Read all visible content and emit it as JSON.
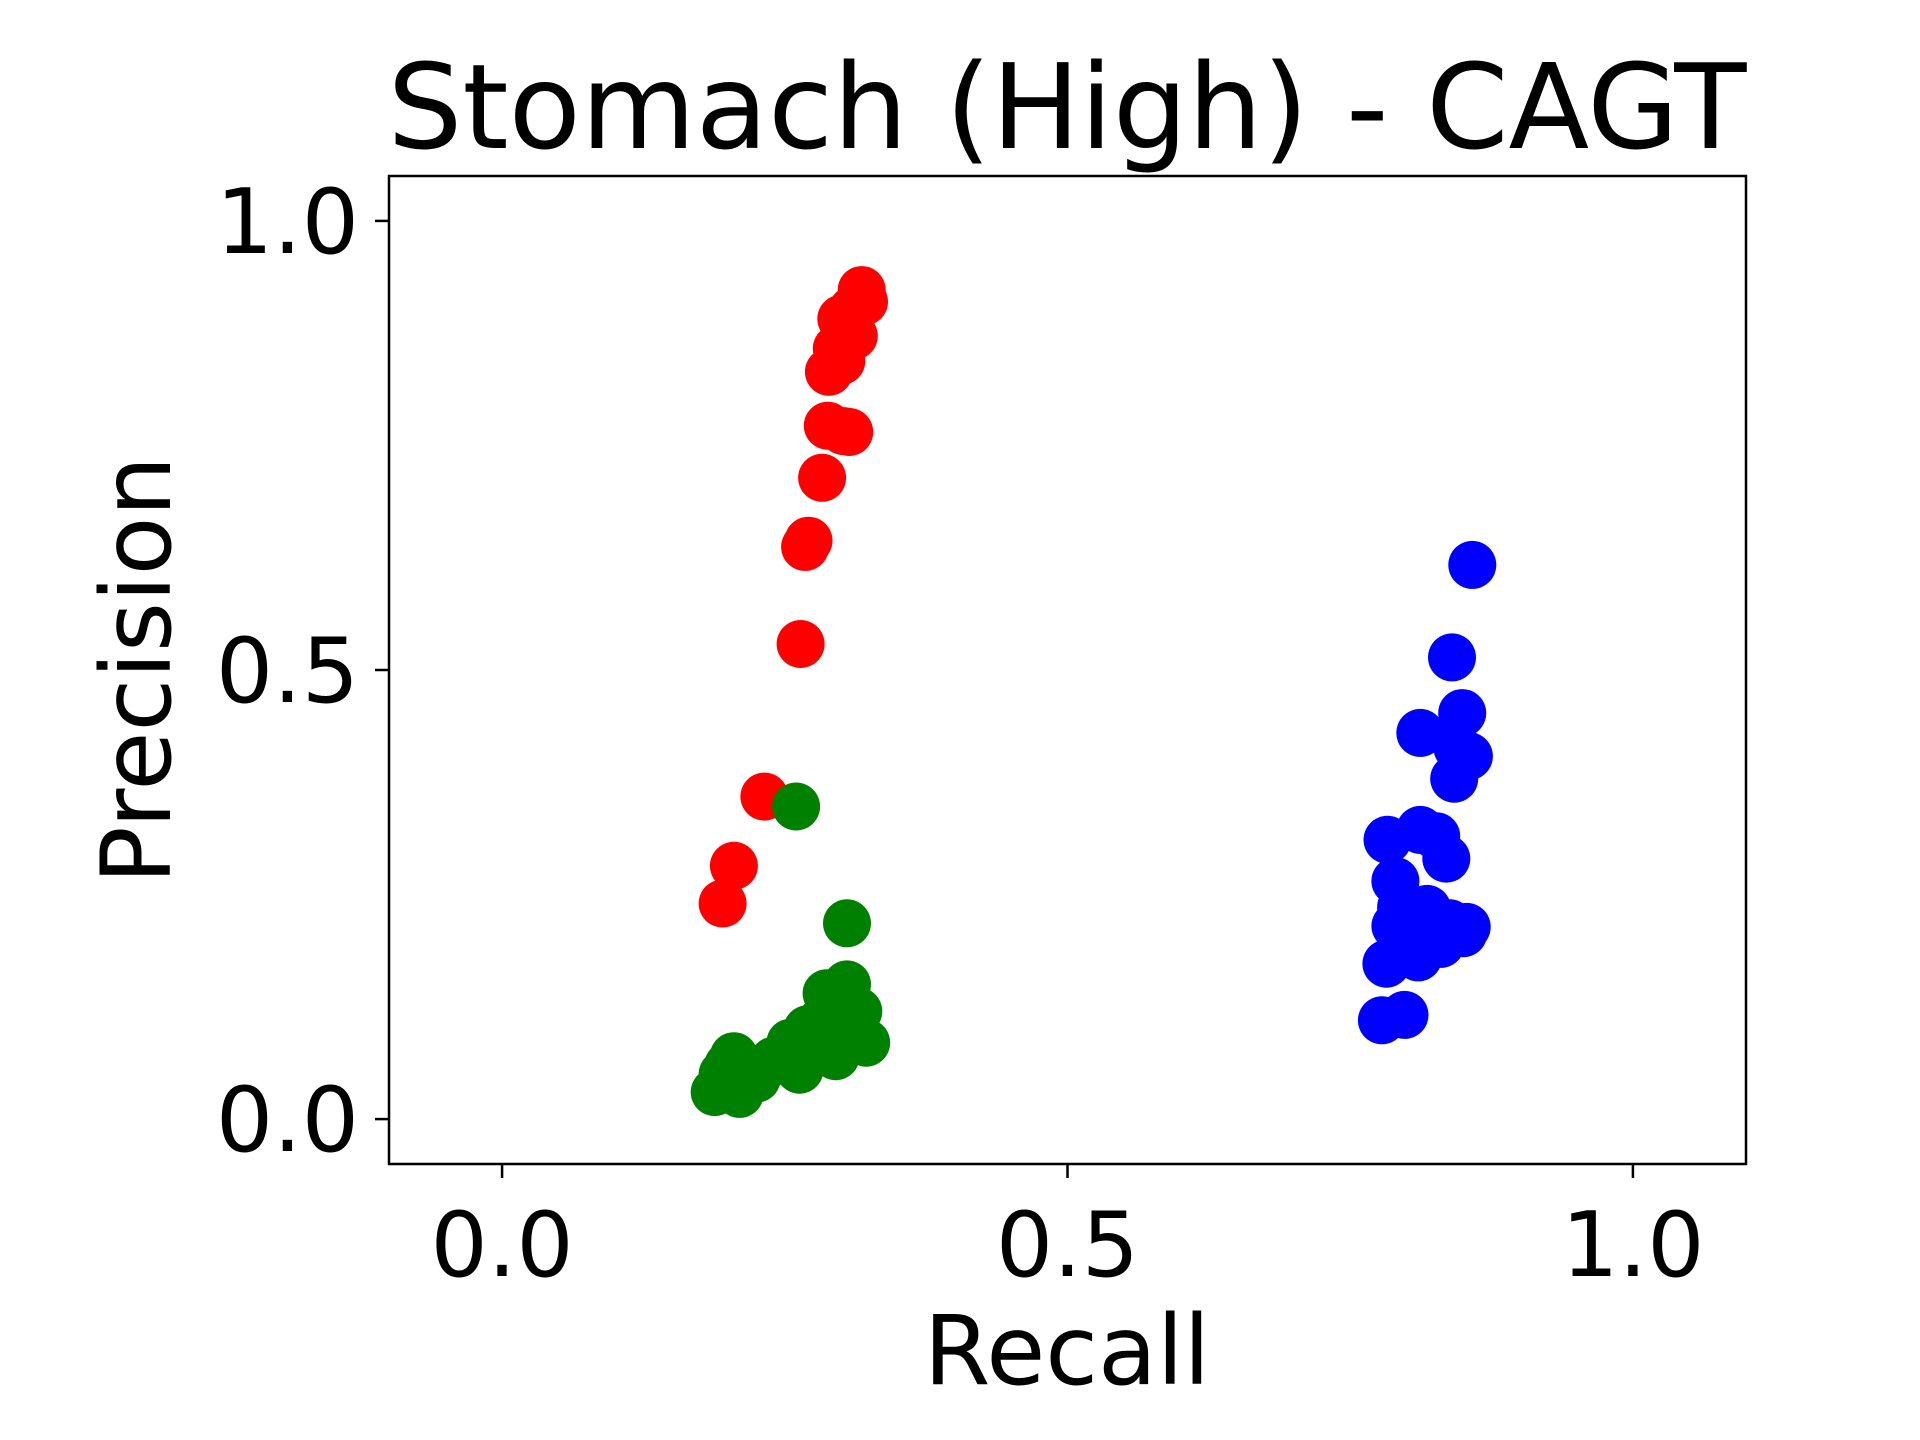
{
  "chart_data": {
    "type": "scatter",
    "title": "Stomach (High) - CAGT",
    "xlabel": "Recall",
    "ylabel": "Precision",
    "xlim": [
      -0.1,
      1.1
    ],
    "ylim": [
      -0.05,
      1.05
    ],
    "xticks": [
      0.0,
      0.5,
      1.0
    ],
    "yticks": [
      0.0,
      0.5,
      1.0
    ],
    "xtick_labels": [
      "0.0",
      "0.5",
      "1.0"
    ],
    "ytick_labels": [
      "0.0",
      "0.5",
      "1.0"
    ],
    "grid": false,
    "series": [
      {
        "color": "#ff0000",
        "x": [
          0.195,
          0.205,
          0.232,
          0.264,
          0.268,
          0.271,
          0.283,
          0.288,
          0.302,
          0.307,
          0.289,
          0.3,
          0.296,
          0.311,
          0.3,
          0.31,
          0.32,
          0.318
        ],
        "y": [
          0.24,
          0.282,
          0.359,
          0.529,
          0.637,
          0.644,
          0.714,
          0.772,
          0.766,
          0.765,
          0.832,
          0.844,
          0.858,
          0.872,
          0.891,
          0.901,
          0.91,
          0.923
        ]
      },
      {
        "color": "#008000",
        "x": [
          0.188,
          0.195,
          0.2,
          0.205,
          0.21,
          0.2,
          0.225,
          0.232,
          0.24,
          0.252,
          0.255,
          0.263,
          0.27,
          0.28,
          0.283,
          0.29,
          0.295,
          0.3,
          0.305,
          0.31,
          0.315,
          0.322,
          0.287,
          0.305,
          0.26
        ],
        "y": [
          0.03,
          0.05,
          0.06,
          0.07,
          0.028,
          0.04,
          0.045,
          0.058,
          0.065,
          0.072,
          0.085,
          0.055,
          0.1,
          0.08,
          0.11,
          0.09,
          0.07,
          0.13,
          0.15,
          0.1,
          0.12,
          0.085,
          0.14,
          0.218,
          0.348
        ]
      },
      {
        "color": "#0000ff",
        "x": [
          0.778,
          0.782,
          0.79,
          0.783,
          0.79,
          0.795,
          0.798,
          0.805,
          0.81,
          0.812,
          0.818,
          0.82,
          0.823,
          0.826,
          0.83,
          0.835,
          0.838,
          0.842,
          0.845,
          0.85,
          0.853,
          0.855,
          0.849,
          0.858,
          0.84,
          0.812
        ],
        "y": [
          0.11,
          0.173,
          0.215,
          0.311,
          0.265,
          0.236,
          0.116,
          0.198,
          0.18,
          0.322,
          0.234,
          0.196,
          0.205,
          0.315,
          0.195,
          0.29,
          0.218,
          0.379,
          0.413,
          0.207,
          0.214,
          0.404,
          0.452,
          0.617,
          0.514,
          0.43
        ]
      }
    ]
  }
}
